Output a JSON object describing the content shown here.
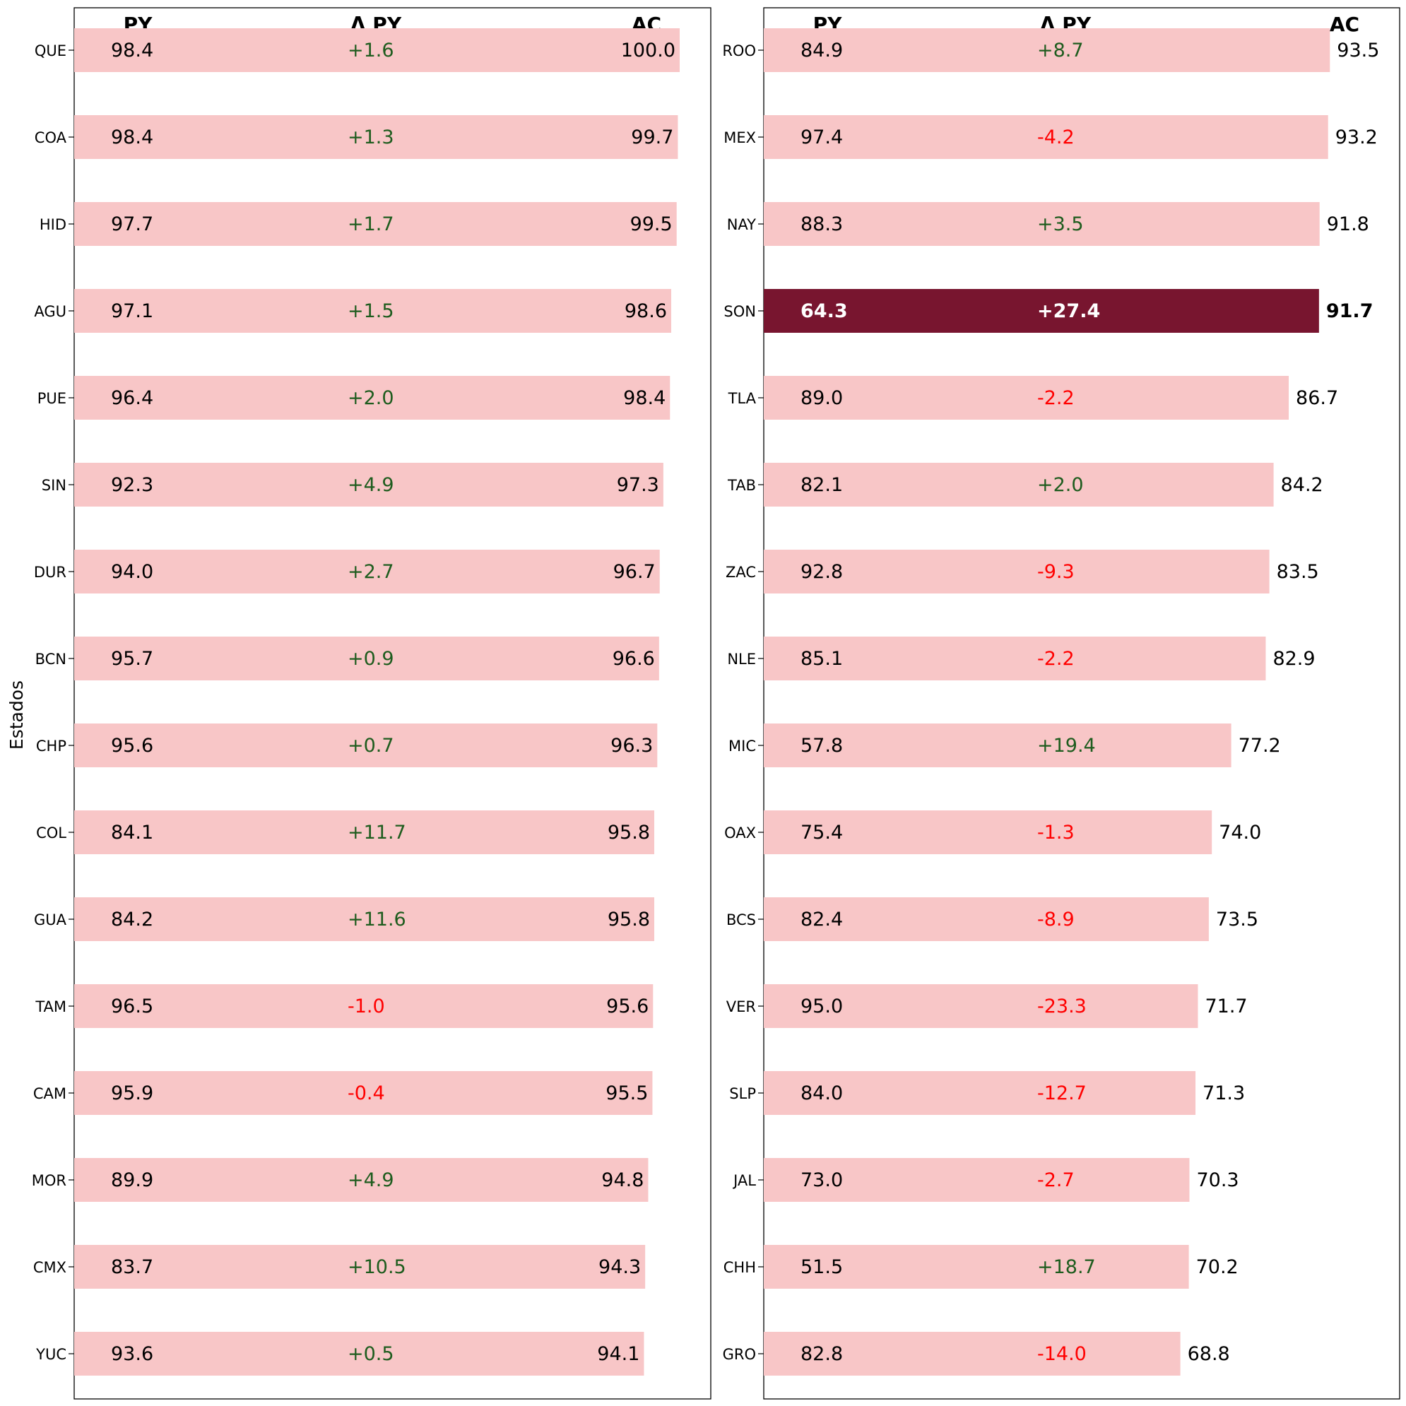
{
  "chart_data": {
    "type": "bar",
    "orientation": "horizontal",
    "ylabel": "Estados",
    "column_headers": {
      "py": "PY",
      "delta": "Δ PY",
      "ac": "AC"
    },
    "colors": {
      "bar": "#f8c6c7",
      "highlight_bar": "#78152f",
      "positive": "#1e5c1e",
      "negative": "#ff0000",
      "text": "#000000",
      "highlight_text": "#ffffff"
    },
    "panels": [
      {
        "rows": [
          {
            "state": "QUE",
            "py": "98.4",
            "delta": "+1.6",
            "ac": "100.0",
            "value": 100.0
          },
          {
            "state": "COA",
            "py": "98.4",
            "delta": "+1.3",
            "ac": "99.7",
            "value": 99.7
          },
          {
            "state": "HID",
            "py": "97.7",
            "delta": "+1.7",
            "ac": "99.5",
            "value": 99.5
          },
          {
            "state": "AGU",
            "py": "97.1",
            "delta": "+1.5",
            "ac": "98.6",
            "value": 98.6
          },
          {
            "state": "PUE",
            "py": "96.4",
            "delta": "+2.0",
            "ac": "98.4",
            "value": 98.4
          },
          {
            "state": "SIN",
            "py": "92.3",
            "delta": "+4.9",
            "ac": "97.3",
            "value": 97.3
          },
          {
            "state": "DUR",
            "py": "94.0",
            "delta": "+2.7",
            "ac": "96.7",
            "value": 96.7
          },
          {
            "state": "BCN",
            "py": "95.7",
            "delta": "+0.9",
            "ac": "96.6",
            "value": 96.6
          },
          {
            "state": "CHP",
            "py": "95.6",
            "delta": "+0.7",
            "ac": "96.3",
            "value": 96.3
          },
          {
            "state": "COL",
            "py": "84.1",
            "delta": "+11.7",
            "ac": "95.8",
            "value": 95.8
          },
          {
            "state": "GUA",
            "py": "84.2",
            "delta": "+11.6",
            "ac": "95.8",
            "value": 95.8
          },
          {
            "state": "TAM",
            "py": "96.5",
            "delta": "-1.0",
            "ac": "95.6",
            "value": 95.6
          },
          {
            "state": "CAM",
            "py": "95.9",
            "delta": "-0.4",
            "ac": "95.5",
            "value": 95.5
          },
          {
            "state": "MOR",
            "py": "89.9",
            "delta": "+4.9",
            "ac": "94.8",
            "value": 94.8
          },
          {
            "state": "CMX",
            "py": "83.7",
            "delta": "+10.5",
            "ac": "94.3",
            "value": 94.3
          },
          {
            "state": "YUC",
            "py": "93.6",
            "delta": "+0.5",
            "ac": "94.1",
            "value": 94.1
          }
        ]
      },
      {
        "rows": [
          {
            "state": "ROO",
            "py": "84.9",
            "delta": "+8.7",
            "ac": "93.5",
            "value": 93.5
          },
          {
            "state": "MEX",
            "py": "97.4",
            "delta": "-4.2",
            "ac": "93.2",
            "value": 93.2
          },
          {
            "state": "NAY",
            "py": "88.3",
            "delta": "+3.5",
            "ac": "91.8",
            "value": 91.8
          },
          {
            "state": "SON",
            "py": "64.3",
            "delta": "+27.4",
            "ac": "91.7",
            "value": 91.7,
            "highlight": true
          },
          {
            "state": "TLA",
            "py": "89.0",
            "delta": "-2.2",
            "ac": "86.7",
            "value": 86.7
          },
          {
            "state": "TAB",
            "py": "82.1",
            "delta": "+2.0",
            "ac": "84.2",
            "value": 84.2
          },
          {
            "state": "ZAC",
            "py": "92.8",
            "delta": "-9.3",
            "ac": "83.5",
            "value": 83.5
          },
          {
            "state": "NLE",
            "py": "85.1",
            "delta": "-2.2",
            "ac": "82.9",
            "value": 82.9
          },
          {
            "state": "MIC",
            "py": "57.8",
            "delta": "+19.4",
            "ac": "77.2",
            "value": 77.2
          },
          {
            "state": "OAX",
            "py": "75.4",
            "delta": "-1.3",
            "ac": "74.0",
            "value": 74.0
          },
          {
            "state": "BCS",
            "py": "82.4",
            "delta": "-8.9",
            "ac": "73.5",
            "value": 73.5
          },
          {
            "state": "VER",
            "py": "95.0",
            "delta": "-23.3",
            "ac": "71.7",
            "value": 71.7
          },
          {
            "state": "SLP",
            "py": "84.0",
            "delta": "-12.7",
            "ac": "71.3",
            "value": 71.3
          },
          {
            "state": "JAL",
            "py": "73.0",
            "delta": "-2.7",
            "ac": "70.3",
            "value": 70.3
          },
          {
            "state": "CHH",
            "py": "51.5",
            "delta": "+18.7",
            "ac": "70.2",
            "value": 70.2
          },
          {
            "state": "GRO",
            "py": "82.8",
            "delta": "-14.0",
            "ac": "68.8",
            "value": 68.8
          }
        ]
      }
    ]
  }
}
